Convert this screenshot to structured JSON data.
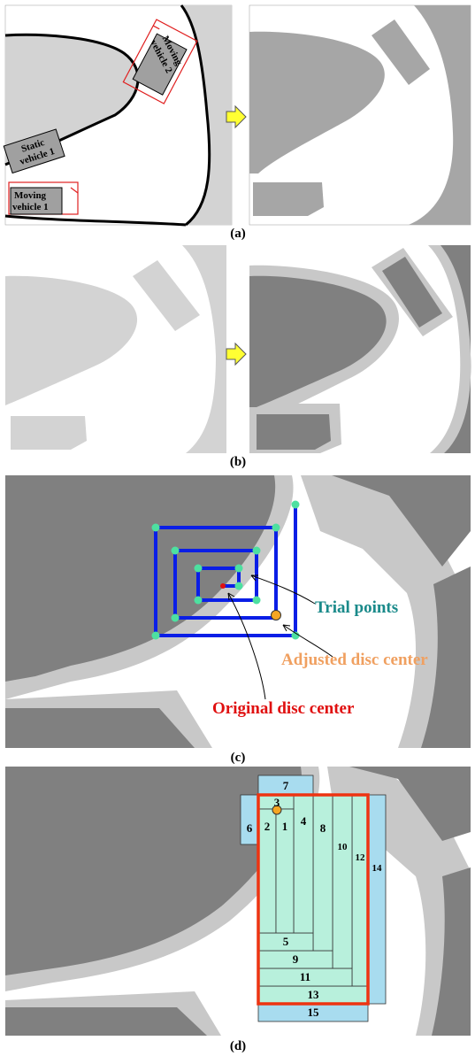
{
  "figure": {
    "panel_a": {
      "caption": "(a)",
      "vehicles": {
        "moving_vehicle_2": [
          "Moving",
          "vehicle 2"
        ],
        "static_vehicle_1": [
          "Static",
          "vehicle 1"
        ],
        "moving_vehicle_1": [
          "Moving",
          "vehicle 1"
        ]
      }
    },
    "panel_b": {
      "caption": "(b)"
    },
    "panel_c": {
      "caption": "(c)",
      "annotations": {
        "trial_points": "Trial points",
        "adjusted_center": "Adjusted disc center",
        "original_center": "Original disc center"
      }
    },
    "panel_d": {
      "caption": "(d)",
      "region_numbers": [
        "1",
        "2",
        "3",
        "4",
        "5",
        "6",
        "7",
        "8",
        "9",
        "10",
        "11",
        "12",
        "13",
        "14",
        "15"
      ]
    }
  },
  "colors": {
    "road": "#ffffff",
    "obstacle_light": "#d3d3d3",
    "obstacle_dark": "#8c8c8c",
    "inflation": "#c8c8c8",
    "spiral": "#0a1ee6",
    "trial_point": "#4de0a0",
    "adjusted_center": "#f5a623",
    "original_center": "#e01010",
    "trial_text": "#1a8a8a",
    "adjusted_text": "#f0a060",
    "original_text": "#e01010",
    "region_light": "#a8dcef",
    "region_green": "#b8f0dc",
    "bbox": "#ee3311"
  }
}
